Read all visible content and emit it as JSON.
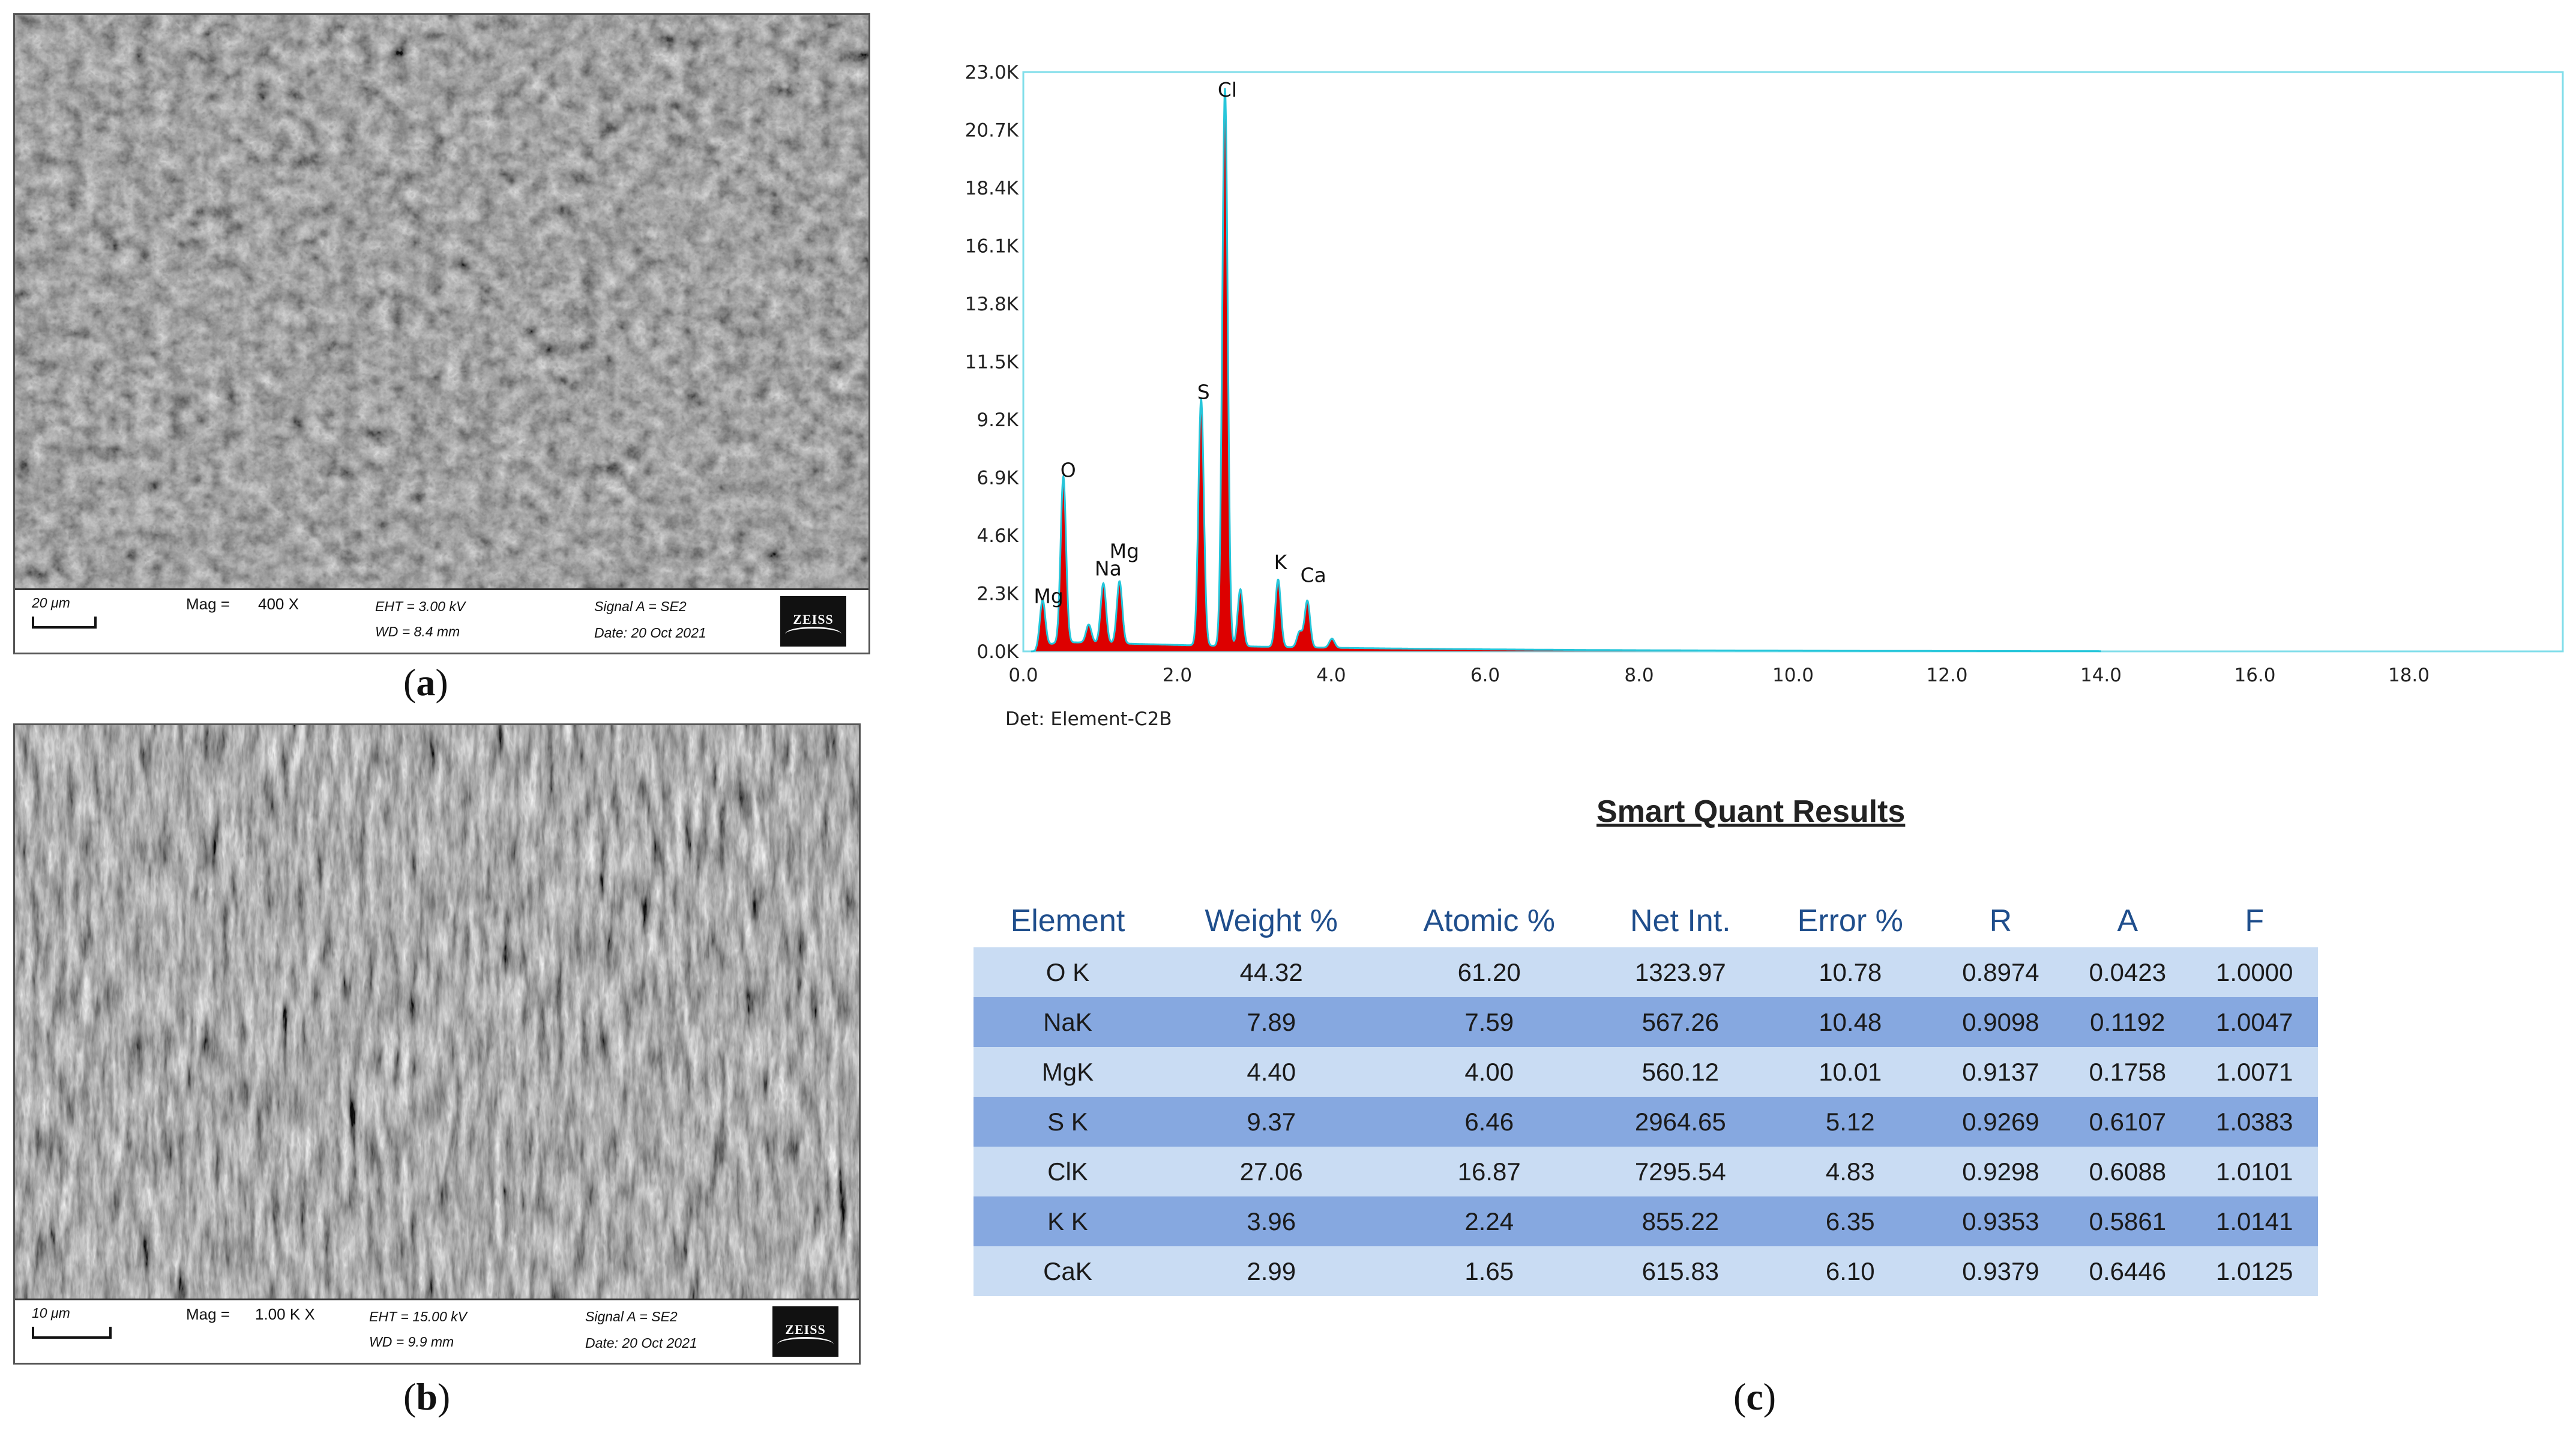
{
  "panels": {
    "a": {
      "label": "a",
      "scale": "20 μm",
      "mag_label": "Mag =",
      "mag_value": "400 X",
      "eht": "EHT =  3.00 kV",
      "wd": "WD =  8.4 mm",
      "signal": "Signal A = SE2",
      "date": "Date: 20 Oct 2021",
      "logo": "ZEISS"
    },
    "b": {
      "label": "b",
      "scale": "10 μm",
      "mag_label": "Mag =",
      "mag_value": "1.00 K X",
      "eht": "EHT = 15.00 kV",
      "wd": "WD =  9.9 mm",
      "signal": "Signal A = SE2",
      "date": "Date: 20 Oct 2021",
      "logo": "ZEISS"
    },
    "c": {
      "label": "c"
    }
  },
  "chart_data": {
    "type": "line",
    "title": "",
    "xlabel": "",
    "ylabel": "",
    "xlim": [
      0,
      20
    ],
    "ylim": [
      0,
      23000
    ],
    "x_ticks": [
      "0.0",
      "2.0",
      "4.0",
      "6.0",
      "8.0",
      "10.0",
      "12.0",
      "14.0",
      "16.0",
      "18.0"
    ],
    "y_ticks": [
      "0.0K",
      "2.3K",
      "4.6K",
      "6.9K",
      "9.2K",
      "11.5K",
      "13.8K",
      "16.1K",
      "18.4K",
      "20.7K",
      "23.0K"
    ],
    "detector": "Det: Element-C2B",
    "peaks": [
      {
        "label": "Mg",
        "x": 0.25,
        "y": 1800
      },
      {
        "label": "O",
        "x": 0.52,
        "y": 6400
      },
      {
        "label": "Na",
        "x": 1.04,
        "y": 2300
      },
      {
        "label": "Mg",
        "x": 1.25,
        "y": 2400
      },
      {
        "label": "S",
        "x": 2.31,
        "y": 9500
      },
      {
        "label": "Cl",
        "x": 2.62,
        "y": 21500
      },
      {
        "label": "K",
        "x": 3.31,
        "y": 2600
      },
      {
        "label": "Ca",
        "x": 3.69,
        "y": 1800
      }
    ],
    "colors": {
      "fill": "#dd0000",
      "outline": "#26c6da",
      "frame": "#80deea"
    }
  },
  "table": {
    "title": "Smart Quant Results",
    "headers": [
      "Element",
      "Weight %",
      "Atomic %",
      "Net Int.",
      "Error %",
      "R",
      "A",
      "F"
    ],
    "rows": [
      [
        "O K",
        "44.32",
        "61.20",
        "1323.97",
        "10.78",
        "0.8974",
        "0.0423",
        "1.0000"
      ],
      [
        "NaK",
        "7.89",
        "7.59",
        "567.26",
        "10.48",
        "0.9098",
        "0.1192",
        "1.0047"
      ],
      [
        "MgK",
        "4.40",
        "4.00",
        "560.12",
        "10.01",
        "0.9137",
        "0.1758",
        "1.0071"
      ],
      [
        "S K",
        "9.37",
        "6.46",
        "2964.65",
        "5.12",
        "0.9269",
        "0.6107",
        "1.0383"
      ],
      [
        "ClK",
        "27.06",
        "16.87",
        "7295.54",
        "4.83",
        "0.9298",
        "0.6088",
        "1.0101"
      ],
      [
        "K K",
        "3.96",
        "2.24",
        "855.22",
        "6.35",
        "0.9353",
        "0.5861",
        "1.0141"
      ],
      [
        "CaK",
        "2.99",
        "1.65",
        "615.83",
        "6.10",
        "0.9379",
        "0.6446",
        "1.0125"
      ]
    ],
    "colors": {
      "header": "#1f4e8c",
      "row_light": "#c9dcf3",
      "row_dark": "#86a8e0"
    }
  }
}
